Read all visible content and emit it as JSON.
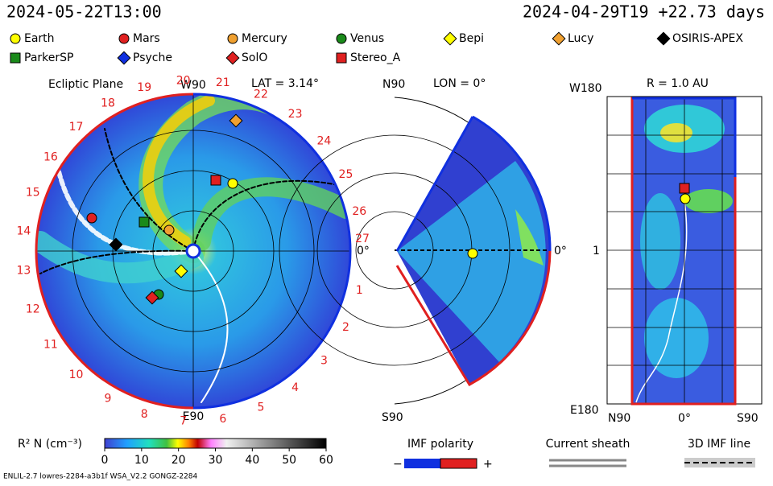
{
  "header": {
    "time": "2024-05-22T13:00",
    "reference": "2024-04-29T19 +22.73 days"
  },
  "legend": [
    {
      "name": "Earth",
      "color": "#ffff00",
      "shape": "circle"
    },
    {
      "name": "Mars",
      "color": "#e02020",
      "shape": "circle"
    },
    {
      "name": "Mercury",
      "color": "#f0a030",
      "shape": "circle"
    },
    {
      "name": "Venus",
      "color": "#1a8a1a",
      "shape": "circle"
    },
    {
      "name": "Bepi",
      "color": "#ffff00",
      "shape": "diamond"
    },
    {
      "name": "Lucy",
      "color": "#f0a030",
      "shape": "diamond"
    },
    {
      "name": "OSIRIS-APEX",
      "color": "#000000",
      "shape": "diamond"
    },
    {
      "name": "ParkerSP",
      "color": "#1a8a1a",
      "shape": "square"
    },
    {
      "name": "Psyche",
      "color": "#1030e0",
      "shape": "diamond"
    },
    {
      "name": "SolO",
      "color": "#e02020",
      "shape": "diamond"
    },
    {
      "name": "Stereo_A",
      "color": "#e02020",
      "shape": "square"
    }
  ],
  "ecliptic": {
    "title": "Ecliptic Plane",
    "top": "W90",
    "lat": "LAT = 3.14°",
    "bottom": "E90",
    "right": "0°",
    "longitudes": [
      "1",
      "2",
      "3",
      "4",
      "5",
      "6",
      "7",
      "8",
      "9",
      "10",
      "11",
      "12",
      "13",
      "14",
      "15",
      "16",
      "17",
      "18",
      "19",
      "20",
      "21",
      "22",
      "23",
      "24",
      "25",
      "26",
      "27"
    ]
  },
  "meridional": {
    "top": "N90",
    "lon": "LON = 0°",
    "right": "0°",
    "bottom": "S90"
  },
  "sphere": {
    "top": "W180",
    "radius": "R = 1.0 AU",
    "middle": "1",
    "bottom": "E180",
    "left": "N90",
    "center": "0°",
    "right": "S90"
  },
  "colorbar": {
    "label": "R² N (cm⁻³)",
    "ticks": [
      0,
      10,
      20,
      30,
      40,
      50,
      60
    ]
  },
  "imf": {
    "title": "IMF polarity",
    "minus": "−",
    "plus": "+"
  },
  "sheath": {
    "title": "Current sheath"
  },
  "line3d": {
    "title": "3D IMF line"
  },
  "footer": "ENLIL-2.7 lowres-2284-a3b1f WSA_V2.2 GONGZ-2284"
}
